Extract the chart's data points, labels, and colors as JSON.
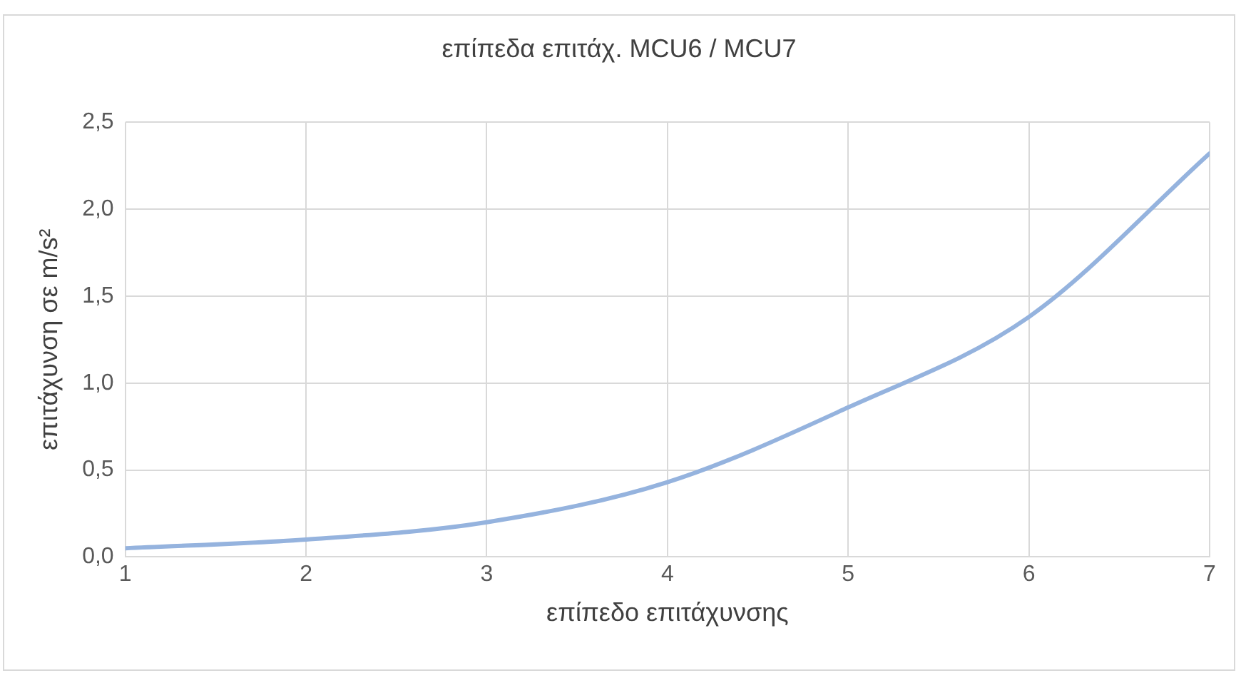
{
  "chart_data": {
    "type": "line",
    "title": "επίπεδα επιτάχ. MCU6 / MCU7",
    "xlabel": "επίπεδο επιτάχυνσης",
    "ylabel": "επιτάχυνση σε m/s²",
    "x": [
      1,
      2,
      3,
      4,
      5,
      6,
      7
    ],
    "series": [
      {
        "color": "#95b3de",
        "values": [
          0.05,
          0.1,
          0.2,
          0.43,
          0.86,
          1.38,
          2.32
        ]
      }
    ],
    "xlim": [
      1,
      7
    ],
    "xticks": [
      1,
      2,
      3,
      4,
      5,
      6,
      7
    ],
    "ylim": [
      0,
      2.5
    ],
    "yticks": [
      {
        "value": 0,
        "label": "0,0"
      },
      {
        "value": 0.5,
        "label": "0,5"
      },
      {
        "value": 1,
        "label": "1,0"
      },
      {
        "value": 1.5,
        "label": "1,5"
      },
      {
        "value": 2,
        "label": "2,0"
      },
      {
        "value": 2.5,
        "label": "2,5"
      }
    ],
    "grid": true,
    "legend": false,
    "marker": "none",
    "line_style": "solid"
  }
}
